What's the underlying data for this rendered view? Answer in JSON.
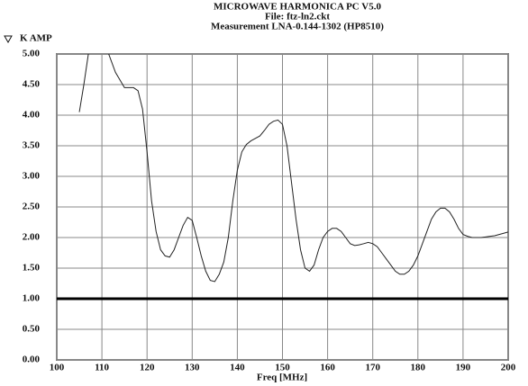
{
  "chart_data": {
    "type": "line",
    "title": "MICROWAVE HARMONICA PC V5.0",
    "subtitle": "File: ftz-ln2.ckt",
    "measurement": "Measurement LNA-0.144-1302 (HP8510)",
    "x_label": "Freq [MHz]",
    "grid": true,
    "xlim": [
      100,
      200
    ],
    "xticks": [
      100,
      110,
      120,
      130,
      140,
      150,
      160,
      170,
      180,
      190,
      200
    ],
    "ylim": [
      0,
      5
    ],
    "yticks": [
      {
        "value": 0,
        "label": "0.00"
      },
      {
        "value": 0.5,
        "label": "0.50"
      },
      {
        "value": 1,
        "label": "1.00"
      },
      {
        "value": 1.5,
        "label": "1.50"
      },
      {
        "value": 2,
        "label": "2.00"
      },
      {
        "value": 2.5,
        "label": "2.50"
      },
      {
        "value": 3,
        "label": "3.00"
      },
      {
        "value": 3.5,
        "label": "3.50"
      },
      {
        "value": 4,
        "label": "4.00"
      },
      {
        "value": 4.5,
        "label": "4.50"
      },
      {
        "value": 5,
        "label": "5.00"
      }
    ],
    "series": [
      {
        "name": "K AMP",
        "color": "#222222",
        "width": 1,
        "x": [
          105,
          106,
          107,
          109,
          111.5,
          113,
          115,
          117,
          118,
          119,
          120,
          121,
          122,
          123,
          124,
          125,
          126,
          127,
          128,
          129,
          130,
          131,
          132,
          133,
          134,
          135,
          136,
          137,
          138,
          139,
          140,
          141,
          142,
          143,
          144,
          145,
          146,
          147,
          148,
          149,
          150,
          151,
          152,
          153,
          154,
          155,
          156,
          157,
          158,
          159,
          160,
          161,
          162,
          163,
          164,
          165,
          166,
          167,
          168,
          169,
          170,
          171,
          172,
          173,
          174,
          175,
          176,
          177,
          178,
          179,
          180,
          181,
          182,
          183,
          184,
          185,
          186,
          187,
          188,
          189,
          190,
          191,
          192,
          193,
          194,
          195,
          196,
          197,
          198,
          199,
          200
        ],
        "values": [
          4.05,
          4.5,
          5.0,
          null,
          5.0,
          4.7,
          4.45,
          4.45,
          4.4,
          4.1,
          3.4,
          2.6,
          2.1,
          1.8,
          1.7,
          1.68,
          1.8,
          2.0,
          2.2,
          2.33,
          2.28,
          2.0,
          1.7,
          1.45,
          1.3,
          1.28,
          1.4,
          1.6,
          2.0,
          2.6,
          3.1,
          3.4,
          3.52,
          3.58,
          3.62,
          3.66,
          3.75,
          3.85,
          3.9,
          3.92,
          3.85,
          3.5,
          2.9,
          2.3,
          1.8,
          1.5,
          1.45,
          1.55,
          1.8,
          2.0,
          2.1,
          2.15,
          2.15,
          2.1,
          2.0,
          1.9,
          1.87,
          1.88,
          1.9,
          1.92,
          1.9,
          1.85,
          1.75,
          1.65,
          1.55,
          1.45,
          1.4,
          1.4,
          1.45,
          1.55,
          1.7,
          1.9,
          2.1,
          2.3,
          2.42,
          2.48,
          2.48,
          2.42,
          2.3,
          2.15,
          2.05,
          2.02,
          2.0,
          2.0,
          2.0,
          2.01,
          2.02,
          2.03,
          2.05,
          2.07,
          2.09
        ]
      },
      {
        "color": "#000000",
        "width": 3,
        "x": [
          100,
          200
        ],
        "values": [
          1,
          1
        ]
      }
    ]
  }
}
